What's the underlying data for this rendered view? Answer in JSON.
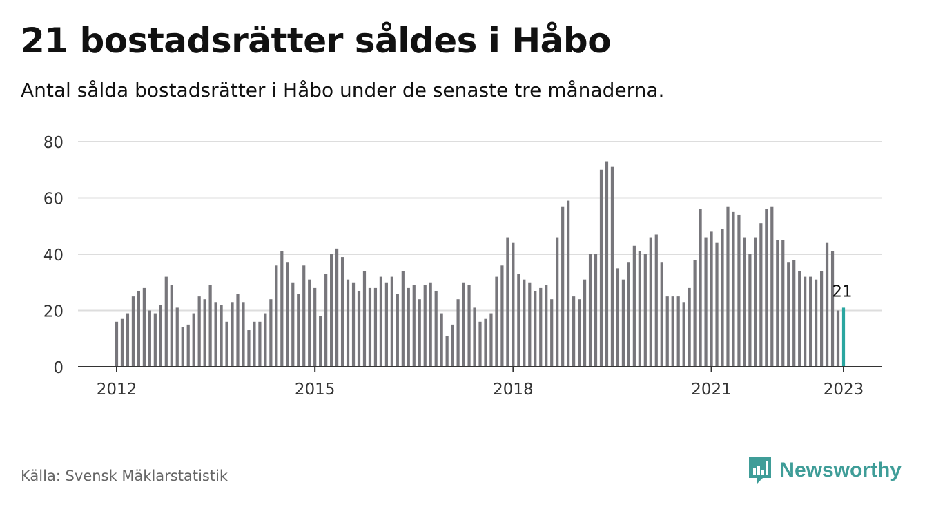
{
  "title": "21 bostadsrätter såldes i Håbo",
  "subtitle": "Antal sålda bostadsrätter i Håbo under de senaste tre månaderna.",
  "source": "Källa: Svensk Mäklarstatistik",
  "brand": {
    "name": "Newsworthy",
    "color": "#3f9d98"
  },
  "colors": {
    "bar": "#77767b",
    "highlight": "#2aa6a0",
    "grid": "#dddddd",
    "axis": "#333333"
  },
  "chart_data": {
    "type": "bar",
    "title": "21 bostadsrätter såldes i Håbo",
    "xlabel": "",
    "ylabel": "",
    "ylim": [
      0,
      80
    ],
    "yticks": [
      0,
      20,
      40,
      60,
      80
    ],
    "xticks": [
      "2012",
      "2015",
      "2018",
      "2021",
      "2023"
    ],
    "x_start": "2012-01",
    "x_end": "2023-01",
    "grid": true,
    "highlight_label": "21",
    "values": [
      16,
      17,
      19,
      25,
      27,
      28,
      20,
      19,
      22,
      32,
      29,
      21,
      14,
      15,
      19,
      25,
      24,
      29,
      23,
      22,
      16,
      23,
      26,
      23,
      13,
      16,
      16,
      19,
      24,
      36,
      41,
      37,
      30,
      26,
      36,
      31,
      28,
      18,
      33,
      40,
      42,
      39,
      31,
      30,
      27,
      34,
      28,
      28,
      32,
      30,
      32,
      26,
      34,
      28,
      29,
      24,
      29,
      30,
      27,
      19,
      11,
      15,
      24,
      30,
      29,
      21,
      16,
      17,
      19,
      32,
      36,
      46,
      44,
      33,
      31,
      30,
      27,
      28,
      29,
      24,
      46,
      57,
      59,
      25,
      24,
      31,
      40,
      40,
      70,
      73,
      71,
      35,
      31,
      37,
      43,
      41,
      40,
      46,
      47,
      37,
      25,
      25,
      25,
      23,
      28,
      38,
      56,
      46,
      48,
      44,
      49,
      57,
      55,
      54,
      46,
      40,
      46,
      51,
      56,
      57,
      45,
      45,
      37,
      38,
      34,
      32,
      32,
      31,
      34,
      44,
      41,
      20,
      21
    ]
  }
}
